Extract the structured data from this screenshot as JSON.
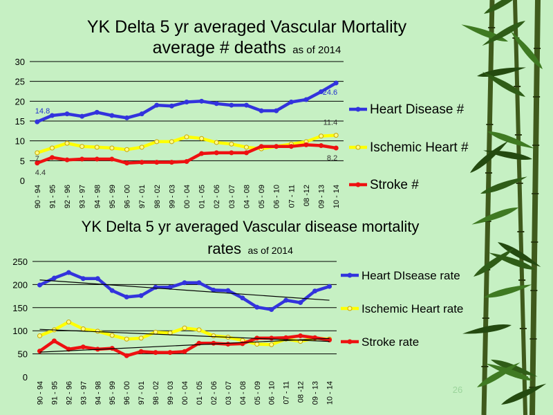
{
  "slide_number": "26",
  "chart_data": [
    {
      "type": "line",
      "title": "YK Delta 5 yr averaged Vascular Mortality",
      "subtitle_main": "average # deaths",
      "subtitle_suffix": "as of 2014",
      "ylim": [
        0,
        30
      ],
      "yticks": [
        "0",
        "5",
        "10",
        "15",
        "20",
        "25",
        "30"
      ],
      "categories": [
        "90 - 94",
        "91 - 95",
        "92 - 96",
        "93 - 97",
        "94 - 98",
        "95 - 99",
        "96 - 00",
        "97 - 01",
        "98 - 02",
        "99 - 03",
        "00 - 04",
        "01 - 05",
        "02 - 06",
        "03 - 07",
        "04 - 08",
        "05 - 09",
        "06 - 10",
        "07 - 11",
        "08 -12",
        "09 - 13",
        "10 - 14"
      ],
      "legend_position": "right",
      "series": [
        {
          "name": "Heart Disease #",
          "color": "#3333dd",
          "marker_fill": "#3333dd",
          "values": [
            14.8,
            16.4,
            16.8,
            16.2,
            17.2,
            16.4,
            15.8,
            16.8,
            19.0,
            18.8,
            19.8,
            20.0,
            19.4,
            19.0,
            19.0,
            17.6,
            17.6,
            19.8,
            20.4,
            22.4,
            24.6
          ]
        },
        {
          "name": "Ischemic Heart #",
          "color": "#ffff00",
          "marker_fill": "#ffff88",
          "values": [
            7.0,
            8.2,
            9.4,
            8.6,
            8.4,
            8.2,
            7.8,
            8.4,
            9.8,
            9.8,
            11.0,
            10.6,
            9.6,
            9.2,
            8.4,
            8.0,
            8.6,
            9.2,
            9.8,
            11.2,
            11.4
          ]
        },
        {
          "name": "Stroke #",
          "color": "#ee1111",
          "marker_fill": "#ee1111",
          "values": [
            4.4,
            5.8,
            5.2,
            5.4,
            5.4,
            5.4,
            4.4,
            4.6,
            4.6,
            4.6,
            4.8,
            6.8,
            7.0,
            7.0,
            7.0,
            8.6,
            8.6,
            8.6,
            9.0,
            8.8,
            8.2
          ]
        }
      ],
      "data_labels": [
        {
          "series": 0,
          "index": 0,
          "text": "14.8",
          "color": "#2233cc"
        },
        {
          "series": 0,
          "index": 20,
          "text": "24.6",
          "color": "#2233cc"
        },
        {
          "series": 1,
          "index": 0,
          "text": "7",
          "color": "#333333"
        },
        {
          "series": 1,
          "index": 20,
          "text": "11.4",
          "color": "#333333"
        },
        {
          "series": 2,
          "index": 0,
          "text": "4.4",
          "color": "#333333"
        },
        {
          "series": 2,
          "index": 20,
          "text": "8.2",
          "color": "#333333"
        }
      ]
    },
    {
      "type": "line",
      "title": "YK Delta 5 yr averaged Vascular disease mortality",
      "subtitle_main": "rates",
      "subtitle_suffix": "as of 2014",
      "ylim": [
        0,
        250
      ],
      "yticks": [
        "0",
        "50",
        "100",
        "150",
        "200",
        "250"
      ],
      "categories": [
        "90 - 94",
        "91 - 95",
        "92 - 96",
        "93 - 97",
        "94 - 98",
        "95 - 99",
        "96 - 00",
        "97 - 01",
        "98 - 02",
        "99 - 03",
        "00 - 04",
        "01 - 05",
        "02 - 06",
        "03 - 07",
        "04 - 08",
        "05 - 09",
        "06 - 10",
        "07 - 11",
        "08 -12",
        "09 - 13",
        "10 - 14"
      ],
      "legend_position": "right",
      "trendlines": true,
      "series": [
        {
          "name": "Heart DIsease rate",
          "color": "#3333dd",
          "marker_fill": "#3333dd",
          "values": [
            199,
            214,
            226,
            213,
            213,
            187,
            173,
            176,
            194,
            194,
            204,
            204,
            188,
            187,
            171,
            151,
            146,
            166,
            161,
            186,
            196
          ]
        },
        {
          "name": "Ischemic Heart rate",
          "color": "#ffff00",
          "marker_fill": "#ffff88",
          "values": [
            89,
            102,
            119,
            104,
            99,
            90,
            82,
            84,
            97,
            95,
            106,
            102,
            89,
            86,
            79,
            71,
            70,
            82,
            77,
            84,
            82
          ]
        },
        {
          "name": "Stroke rate",
          "color": "#ee1111",
          "marker_fill": "#ee1111",
          "values": [
            56,
            78,
            60,
            65,
            60,
            62,
            46,
            55,
            53,
            53,
            55,
            73,
            73,
            71,
            72,
            84,
            84,
            85,
            89,
            85,
            80
          ]
        }
      ]
    }
  ]
}
